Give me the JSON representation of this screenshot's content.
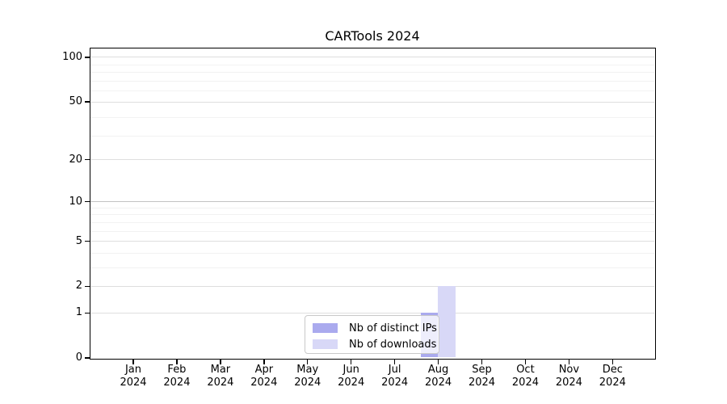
{
  "chart_data": {
    "type": "bar",
    "title": "CARTools 2024",
    "xlabel": "",
    "ylabel": "",
    "y_scale": "log1p",
    "ylim": [
      0,
      115
    ],
    "grid": "on",
    "y_ticks": [
      0,
      1,
      2,
      5,
      10,
      20,
      50,
      100
    ],
    "y_minor_gridlines": [
      3,
      4,
      6,
      7,
      8,
      9,
      29,
      39,
      59,
      69,
      79,
      89
    ],
    "categories": [
      {
        "month": "Jan",
        "year": "2024"
      },
      {
        "month": "Feb",
        "year": "2024"
      },
      {
        "month": "Mar",
        "year": "2024"
      },
      {
        "month": "Apr",
        "year": "2024"
      },
      {
        "month": "May",
        "year": "2024"
      },
      {
        "month": "Jun",
        "year": "2024"
      },
      {
        "month": "Jul",
        "year": "2024"
      },
      {
        "month": "Aug",
        "year": "2024"
      },
      {
        "month": "Sep",
        "year": "2024"
      },
      {
        "month": "Oct",
        "year": "2024"
      },
      {
        "month": "Nov",
        "year": "2024"
      },
      {
        "month": "Dec",
        "year": "2024"
      }
    ],
    "series": [
      {
        "name": "Nb of distinct IPs",
        "color": "#aaaaee",
        "values": [
          0,
          0,
          0,
          0,
          0,
          0,
          0,
          1,
          0,
          0,
          0,
          0
        ]
      },
      {
        "name": "Nb of downloads",
        "color": "#d8d8f7",
        "values": [
          0,
          0,
          0,
          0,
          0,
          0,
          0,
          2,
          0,
          0,
          0,
          0
        ]
      }
    ],
    "legend": {
      "position": "lower-center-inside",
      "entries": [
        "Nb of distinct IPs",
        "Nb of downloads"
      ]
    }
  }
}
